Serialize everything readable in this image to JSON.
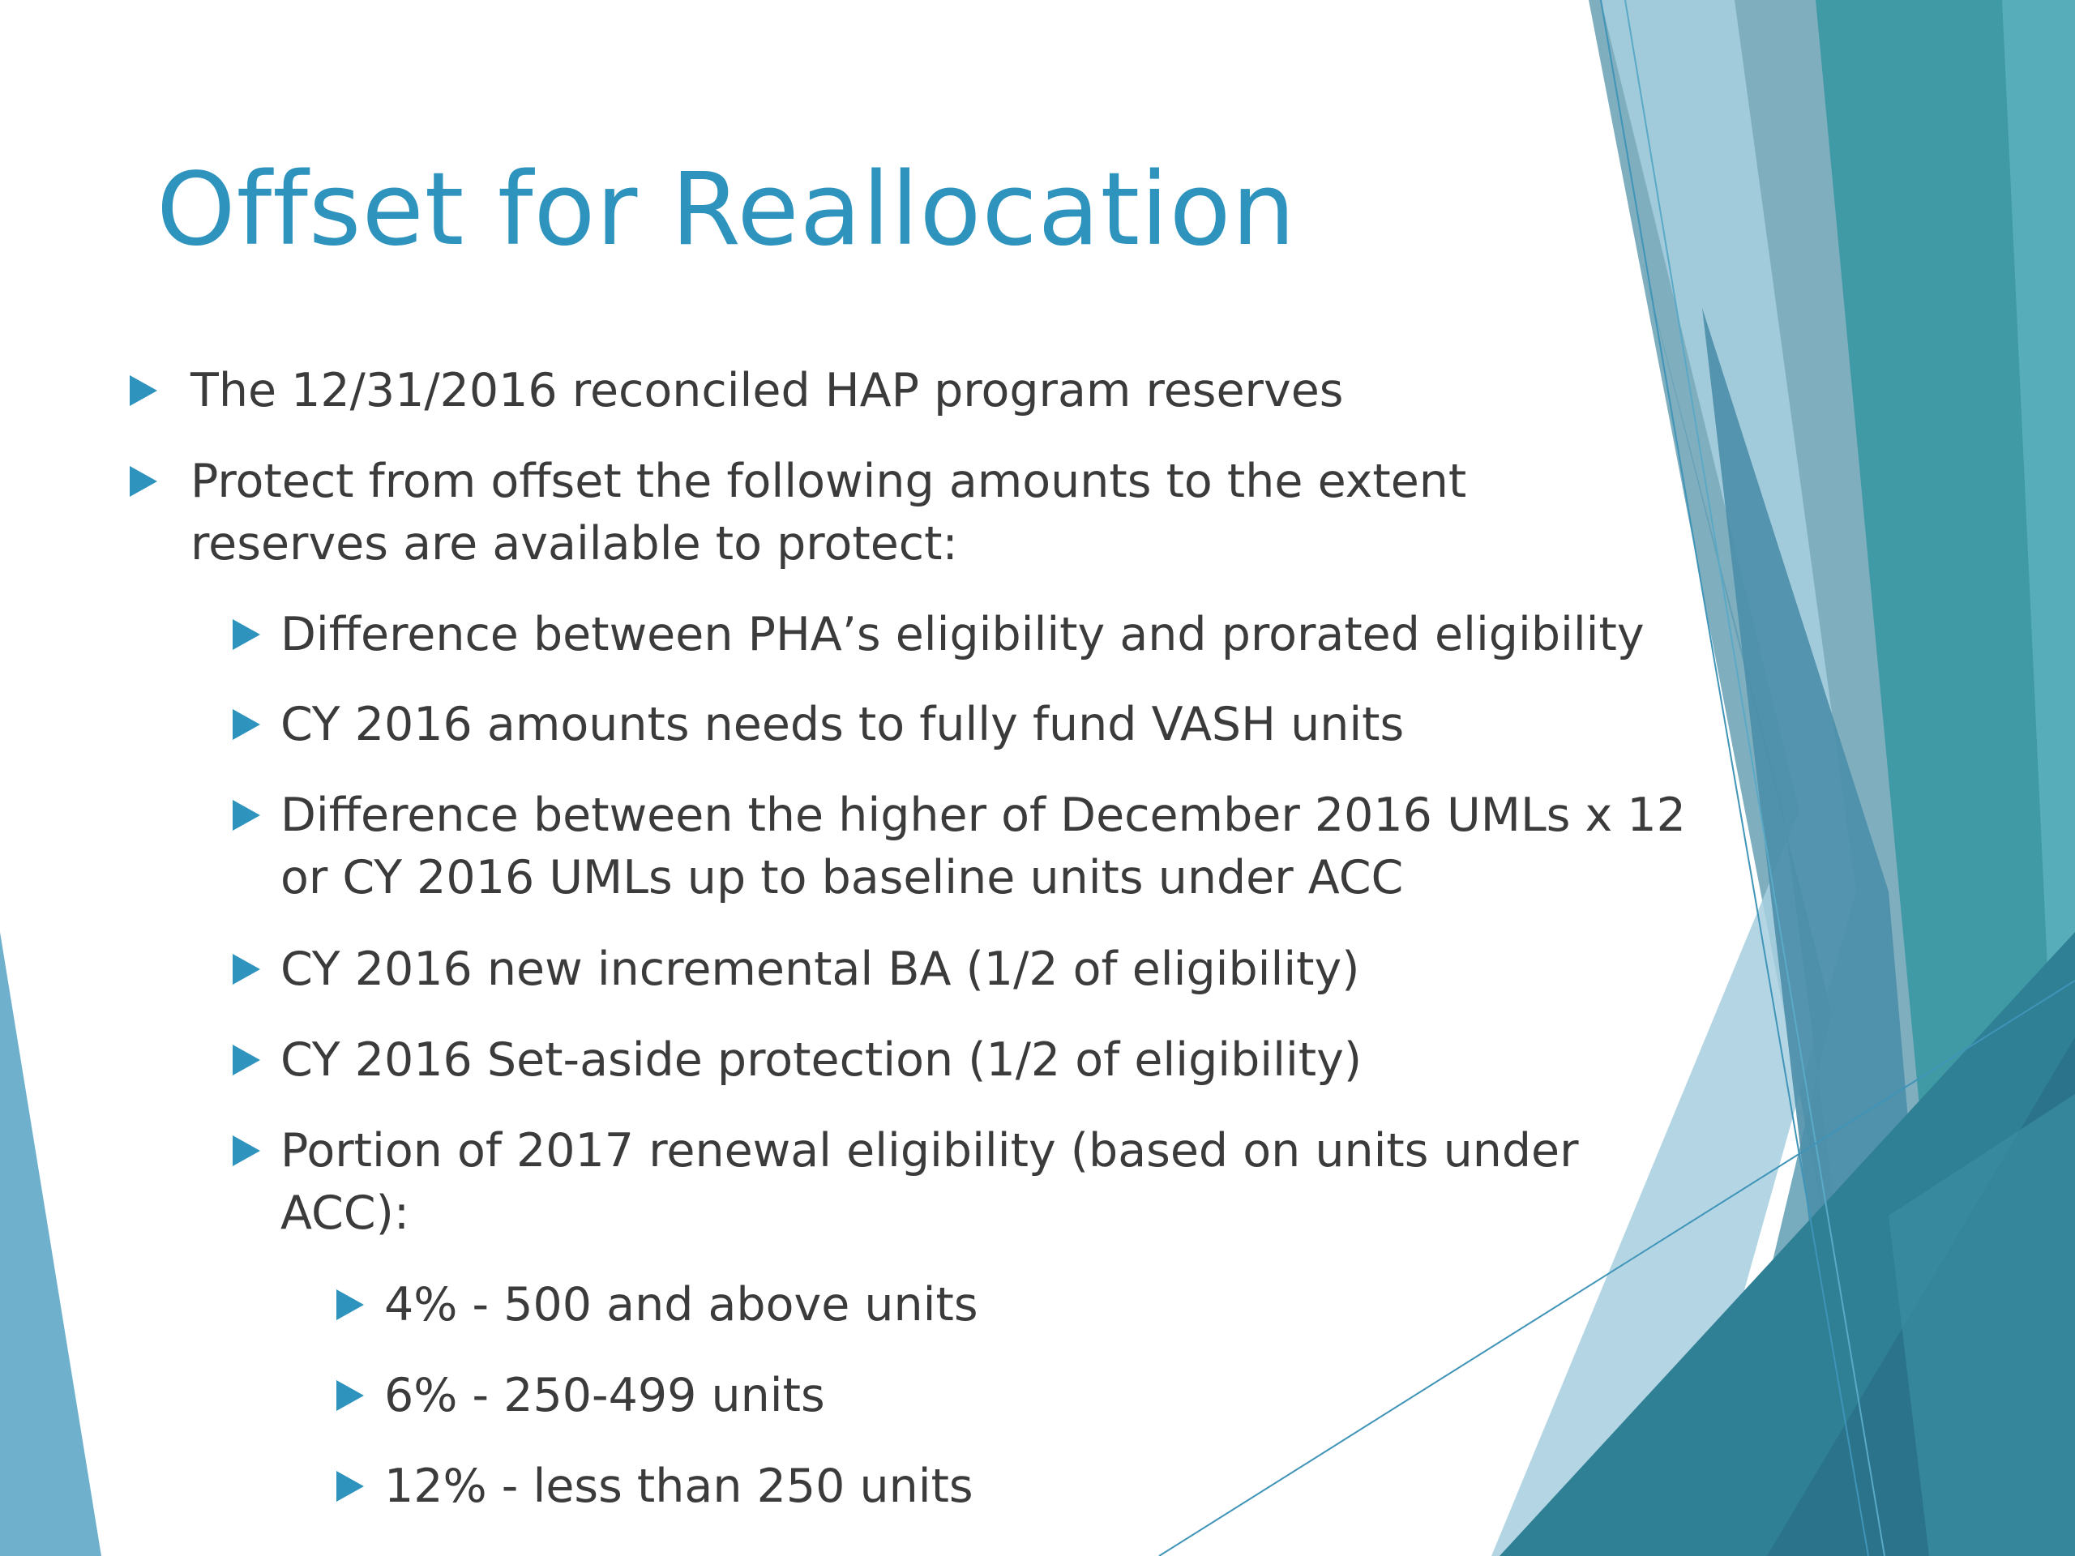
{
  "slide": {
    "title": "Offset for Reallocation",
    "colors": {
      "title": "#2e93bd",
      "text": "#3b3b3b",
      "bullet_arrow": "#2e93bd",
      "teal_dark": "#2f7f95",
      "teal_mid": "#3f9aa8",
      "blue_light": "#a8d0e2",
      "blue_grey": "#6f9fb4"
    },
    "bullets": [
      {
        "level": 1,
        "lines": [
          "The 12/31/2016 reconciled HAP program reserves"
        ]
      },
      {
        "level": 1,
        "lines": [
          "Protect from offset the following amounts to the extent",
          "reserves are available to protect:"
        ]
      },
      {
        "level": 2,
        "lines": [
          "Difference between PHA’s eligibility and prorated eligibility"
        ]
      },
      {
        "level": 2,
        "lines": [
          "CY 2016 amounts needs to fully fund VASH units"
        ]
      },
      {
        "level": 2,
        "lines": [
          "Difference between the higher of December 2016 UMLs x 12",
          "or CY 2016 UMLs up to baseline units under ACC"
        ]
      },
      {
        "level": 2,
        "lines": [
          "CY 2016 new incremental BA (1/2 of eligibility)"
        ]
      },
      {
        "level": 2,
        "lines": [
          "CY 2016 Set-aside protection (1/2 of eligibility)"
        ]
      },
      {
        "level": 2,
        "lines": [
          "Portion of 2017 renewal eligibility (based on units under",
          "ACC):"
        ]
      },
      {
        "level": 3,
        "lines": [
          "4% - 500 and above units"
        ]
      },
      {
        "level": 3,
        "lines": [
          "6% - 250-499 units"
        ]
      },
      {
        "level": 3,
        "lines": [
          "12% - less than 250 units"
        ]
      }
    ]
  }
}
